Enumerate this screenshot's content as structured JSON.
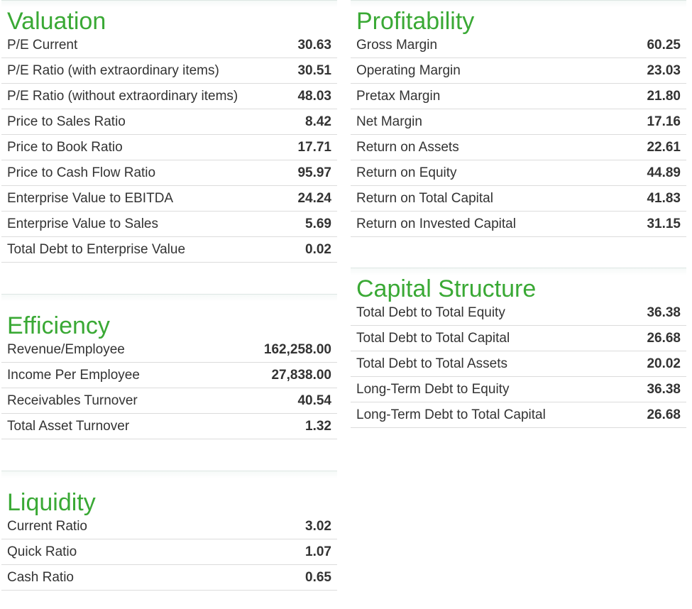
{
  "sections": {
    "valuation": {
      "title": "Valuation",
      "rows": [
        {
          "label": "P/E Current",
          "value": "30.63"
        },
        {
          "label": "P/E Ratio (with extraordinary items)",
          "value": "30.51"
        },
        {
          "label": "P/E Ratio (without extraordinary items)",
          "value": "48.03"
        },
        {
          "label": "Price to Sales Ratio",
          "value": "8.42"
        },
        {
          "label": "Price to Book Ratio",
          "value": "17.71"
        },
        {
          "label": "Price to Cash Flow Ratio",
          "value": "95.97"
        },
        {
          "label": "Enterprise Value to EBITDA",
          "value": "24.24"
        },
        {
          "label": "Enterprise Value to Sales",
          "value": "5.69"
        },
        {
          "label": "Total Debt to Enterprise Value",
          "value": "0.02"
        }
      ]
    },
    "efficiency": {
      "title": "Efficiency",
      "rows": [
        {
          "label": "Revenue/Employee",
          "value": "162,258.00"
        },
        {
          "label": "Income Per Employee",
          "value": "27,838.00"
        },
        {
          "label": "Receivables Turnover",
          "value": "40.54"
        },
        {
          "label": "Total Asset Turnover",
          "value": "1.32"
        }
      ]
    },
    "liquidity": {
      "title": "Liquidity",
      "rows": [
        {
          "label": "Current Ratio",
          "value": "3.02"
        },
        {
          "label": "Quick Ratio",
          "value": "1.07"
        },
        {
          "label": "Cash Ratio",
          "value": "0.65"
        }
      ]
    },
    "profitability": {
      "title": "Profitability",
      "rows": [
        {
          "label": "Gross Margin",
          "value": "60.25"
        },
        {
          "label": "Operating Margin",
          "value": "23.03"
        },
        {
          "label": "Pretax Margin",
          "value": "21.80"
        },
        {
          "label": "Net Margin",
          "value": "17.16"
        },
        {
          "label": "Return on Assets",
          "value": "22.61"
        },
        {
          "label": "Return on Equity",
          "value": "44.89"
        },
        {
          "label": "Return on Total Capital",
          "value": "41.83"
        },
        {
          "label": "Return on Invested Capital",
          "value": "31.15"
        }
      ]
    },
    "capital_structure": {
      "title": "Capital Structure",
      "rows": [
        {
          "label": "Total Debt to Total Equity",
          "value": "36.38"
        },
        {
          "label": "Total Debt to Total Capital",
          "value": "26.68"
        },
        {
          "label": "Total Debt to Total Assets",
          "value": "20.02"
        },
        {
          "label": "Long-Term Debt to Equity",
          "value": "36.38"
        },
        {
          "label": "Long-Term Debt to Total Capital",
          "value": "26.68"
        }
      ]
    }
  },
  "colors": {
    "title_green": "#3aa935",
    "text": "#333333",
    "row_divider": "#dcdcdc"
  }
}
